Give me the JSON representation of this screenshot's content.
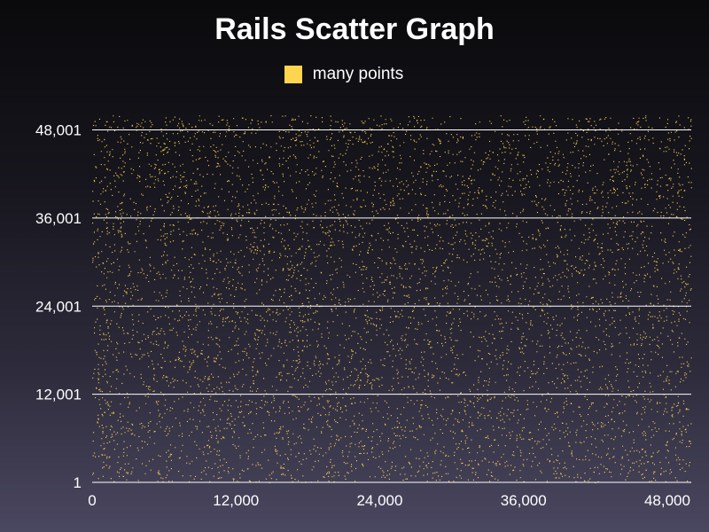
{
  "chart_data": {
    "type": "scatter",
    "title": "Rails Scatter Graph",
    "xlabel": "",
    "ylabel": "",
    "xlim": [
      0,
      50000
    ],
    "ylim": [
      1,
      50001
    ],
    "x_ticks": [
      "0",
      "12,000",
      "24,000",
      "36,000",
      "48,000"
    ],
    "x_tick_values": [
      0,
      12000,
      24000,
      36000,
      48000
    ],
    "y_ticks": [
      "1",
      "12,001",
      "24,001",
      "36,001",
      "48,001"
    ],
    "y_tick_values": [
      1,
      12001,
      24001,
      36001,
      48001
    ],
    "grid": "horizontal",
    "legend_position": "top-center",
    "series": [
      {
        "name": "many points",
        "color": "#ffd54f",
        "distribution": "uniform-random",
        "point_count": 25000,
        "x_range": [
          0,
          50000
        ],
        "y_range": [
          1,
          50001
        ]
      }
    ]
  },
  "colors": {
    "accent": "#ffd54f",
    "text": "#ffffff",
    "grid": "#ffffff"
  }
}
